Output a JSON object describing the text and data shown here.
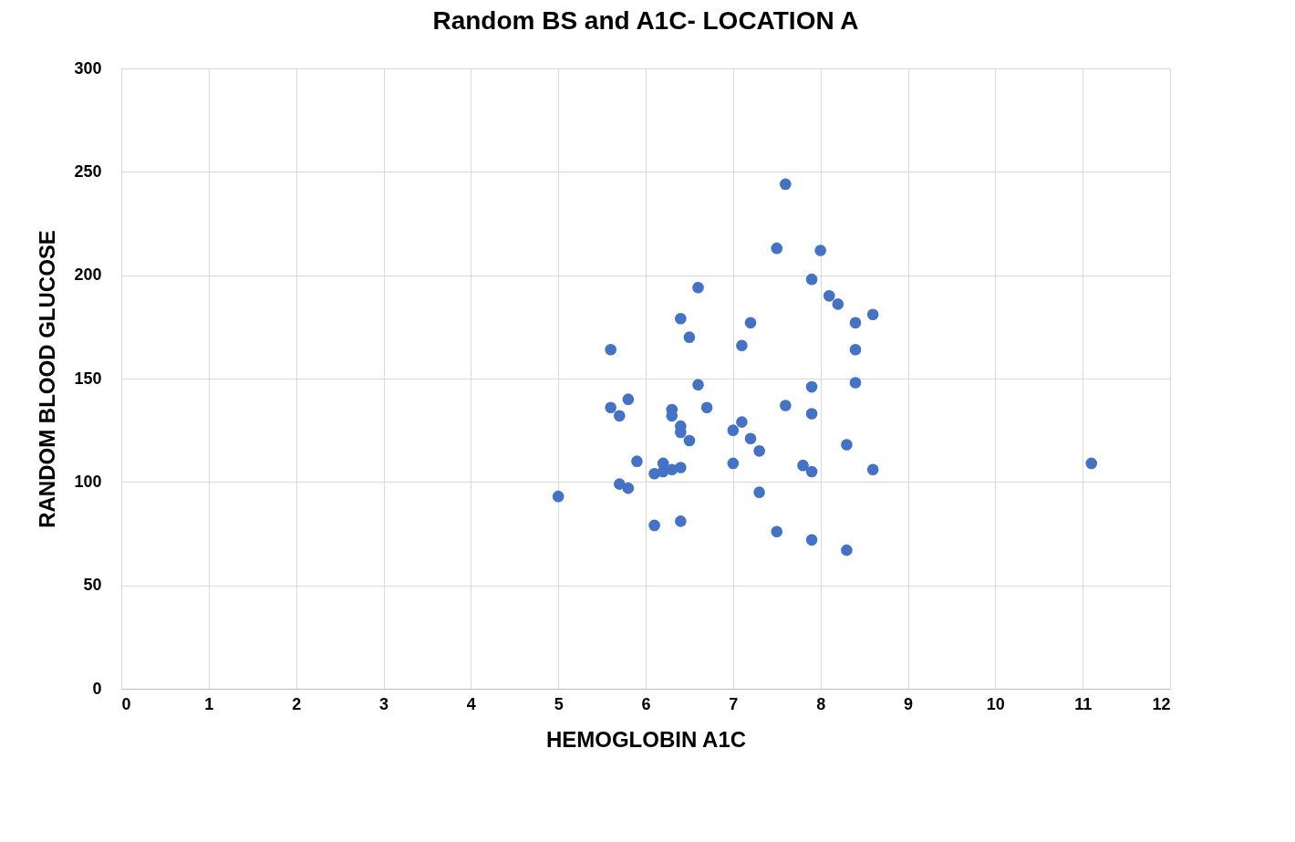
{
  "chart_data": {
    "type": "scatter",
    "title": "Random BS and A1C- LOCATION A",
    "xlabel": "HEMOGLOBIN A1C",
    "ylabel": "RANDOM BLOOD GLUCOSE",
    "x": [
      5.0,
      5.6,
      5.6,
      5.7,
      5.8,
      5.7,
      5.8,
      5.9,
      6.1,
      6.1,
      6.2,
      6.2,
      6.3,
      6.3,
      6.3,
      6.4,
      6.4,
      6.4,
      6.4,
      6.4,
      6.5,
      6.5,
      6.6,
      6.6,
      6.7,
      7.0,
      7.0,
      7.1,
      7.1,
      7.2,
      7.2,
      7.3,
      7.3,
      7.5,
      7.5,
      7.6,
      7.6,
      7.8,
      7.9,
      7.9,
      7.9,
      7.9,
      7.9,
      8.0,
      8.1,
      8.2,
      8.3,
      8.3,
      8.4,
      8.4,
      8.4,
      8.6,
      8.6,
      11.1
    ],
    "values": [
      93,
      164,
      136,
      132,
      140,
      99,
      97,
      110,
      104,
      79,
      109,
      105,
      106,
      135,
      132,
      107,
      179,
      127,
      124,
      81,
      170,
      120,
      194,
      147,
      136,
      125,
      109,
      166,
      129,
      177,
      121,
      115,
      95,
      213,
      76,
      244,
      137,
      108,
      198,
      146,
      133,
      105,
      72,
      212,
      190,
      186,
      118,
      67,
      177,
      164,
      148,
      181,
      106,
      109
    ],
    "color": "#4472c4",
    "marker": "circle",
    "xlim": [
      0,
      12
    ],
    "xticks": [
      0,
      1,
      2,
      3,
      4,
      5,
      6,
      7,
      8,
      9,
      10,
      11,
      12
    ],
    "ylim": [
      0,
      300
    ],
    "yticks": [
      0,
      50,
      100,
      150,
      200,
      250,
      300
    ],
    "grid": true
  }
}
